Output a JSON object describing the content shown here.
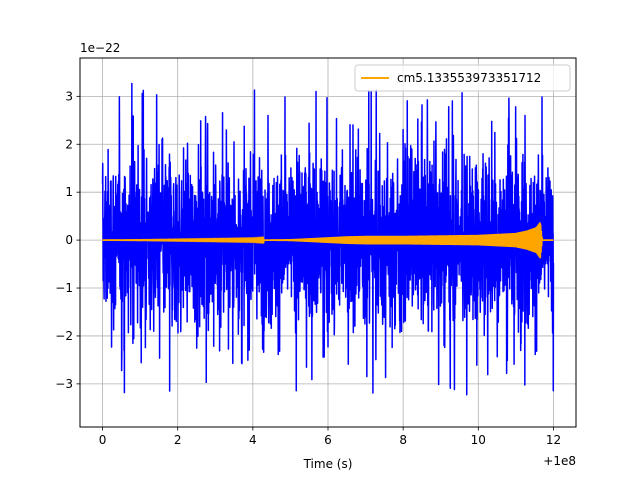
{
  "chart_data": {
    "type": "line",
    "xlabel": "Time (s)",
    "x_offset_label": "+1e8",
    "y_multiplier_label": "1e−22",
    "xlim": [
      -0.6,
      12.6
    ],
    "ylim": [
      -3.9,
      3.8
    ],
    "x_ticks": [
      0,
      2,
      4,
      6,
      8,
      10,
      12
    ],
    "x_tick_labels": [
      "0",
      "2",
      "4",
      "6",
      "8",
      "10",
      "12"
    ],
    "y_ticks": [
      -3,
      -2,
      -1,
      0,
      1,
      2,
      3
    ],
    "y_tick_labels": [
      "−3",
      "−2",
      "−1",
      "0",
      "1",
      "2",
      "3"
    ],
    "grid": true,
    "legend_position": "top-right",
    "series": [
      {
        "color": "#0000ff",
        "x_range": [
          0,
          12
        ],
        "typical_amplitude": 1.6,
        "extreme_min": -3.5,
        "extreme_max": 3.3
      },
      {
        "name": "cm5.133553973351712",
        "color": "#ffa500",
        "points": [
          {
            "x": 0,
            "y_abs": 0.0
          },
          {
            "x": 4,
            "y_abs": 0.01
          },
          {
            "x": 5,
            "y_abs": 0.02
          },
          {
            "x": 5.5,
            "y_abs": 0.04
          },
          {
            "x": 6,
            "y_abs": 0.06
          },
          {
            "x": 6.5,
            "y_abs": 0.08
          },
          {
            "x": 7,
            "y_abs": 0.09
          },
          {
            "x": 8,
            "y_abs": 0.09
          },
          {
            "x": 9,
            "y_abs": 0.1
          },
          {
            "x": 10,
            "y_abs": 0.11
          },
          {
            "x": 10.5,
            "y_abs": 0.13
          },
          {
            "x": 11,
            "y_abs": 0.15
          },
          {
            "x": 11.3,
            "y_abs": 0.2
          },
          {
            "x": 11.55,
            "y_abs": 0.27
          },
          {
            "x": 11.65,
            "y_abs": 0.38
          },
          {
            "x": 11.7,
            "y_abs": 0.0
          },
          {
            "x": 12,
            "y_abs": 0.0
          }
        ]
      }
    ]
  }
}
